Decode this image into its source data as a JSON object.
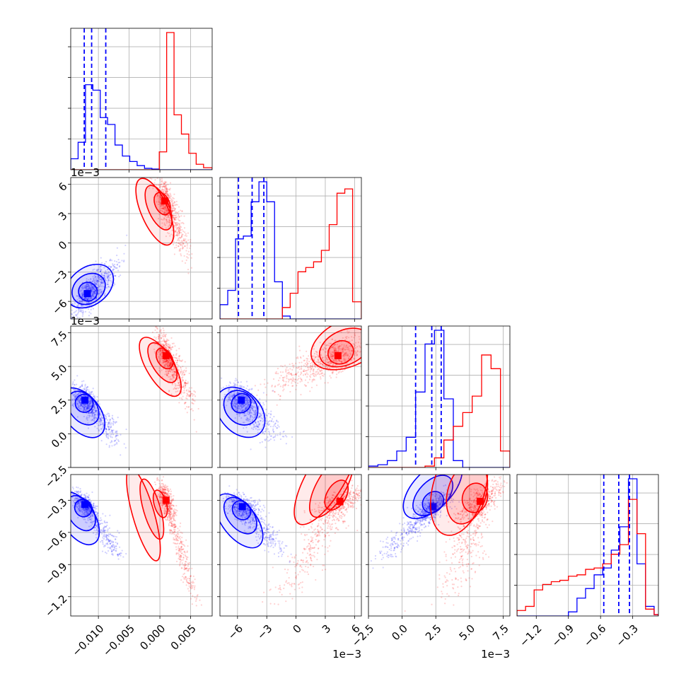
{
  "chart_data": {
    "type": "corner",
    "grid": true,
    "series": [
      {
        "color": "#0000ff"
      },
      {
        "color": "#ff0000"
      }
    ],
    "parameters": [
      {
        "range": [
          -0.0145,
          0.0085
        ],
        "offset_label": "",
        "x_ticks": [
          {
            "value": -0.01,
            "label": "−0.010"
          },
          {
            "value": -0.005,
            "label": "−0.005"
          },
          {
            "value": 0.0,
            "label": "0.000"
          },
          {
            "value": 0.005,
            "label": "0.005"
          }
        ]
      },
      {
        "range": [
          -0.0078,
          0.0067
        ],
        "offset_label": "1e−3",
        "x_ticks": [
          {
            "value": -0.006,
            "label": "−6"
          },
          {
            "value": -0.003,
            "label": "−3"
          },
          {
            "value": 0.0,
            "label": "0"
          },
          {
            "value": 0.003,
            "label": "3"
          },
          {
            "value": 0.006,
            "label": "6"
          }
        ]
      },
      {
        "range": [
          -0.0025,
          0.008
        ],
        "offset_label": "1e−3",
        "x_ticks": [
          {
            "value": -0.0025,
            "label": "−2.5"
          },
          {
            "value": 0.0,
            "label": "0.0"
          },
          {
            "value": 0.0025,
            "label": "2.5"
          },
          {
            "value": 0.005,
            "label": "5.0"
          },
          {
            "value": 0.0075,
            "label": "7.5"
          }
        ]
      },
      {
        "range": [
          -1.38,
          -0.06
        ],
        "offset_label": "",
        "x_ticks": [
          {
            "value": -1.2,
            "label": "−1.2"
          },
          {
            "value": -0.9,
            "label": "−0.9"
          },
          {
            "value": -0.6,
            "label": "−0.6"
          },
          {
            "value": -0.3,
            "label": "−0.3"
          }
        ]
      }
    ],
    "histograms": [
      {
        "param": 0,
        "bins": [
          -0.0145,
          -0.0133,
          -0.0121,
          -0.0109,
          -0.0097,
          -0.0085,
          -0.0073,
          -0.0061,
          -0.0049,
          -0.0037,
          -0.0025,
          -0.0013,
          -0.0001,
          0.0011,
          0.0023,
          0.0035,
          0.0047,
          0.0059,
          0.0071,
          0.0085
        ],
        "blue": [
          0.08,
          0.2,
          0.62,
          0.58,
          0.38,
          0.33,
          0.18,
          0.1,
          0.06,
          0.03,
          0.01,
          0.005,
          0,
          0,
          0,
          0,
          0,
          0,
          0
        ],
        "red": [
          0,
          0,
          0,
          0,
          0,
          0,
          0,
          0,
          0,
          0,
          0,
          0.0,
          0.13,
          1.0,
          0.4,
          0.26,
          0.12,
          0.04,
          0.015
        ],
        "quantiles": [
          -0.0123,
          -0.0111,
          -0.0088
        ]
      },
      {
        "param": 1,
        "bins": [
          -0.0078,
          -0.007,
          -0.0062,
          -0.0054,
          -0.0046,
          -0.0038,
          -0.003,
          -0.0022,
          -0.0014,
          -0.0006,
          0.0002,
          0.001,
          0.0018,
          0.0026,
          0.0034,
          0.0042,
          0.005,
          0.0058,
          0.0067
        ],
        "blue": [
          0.1,
          0.2,
          0.56,
          0.58,
          0.82,
          0.96,
          0.82,
          0.26,
          0.02,
          0,
          0,
          0,
          0,
          0,
          0,
          0,
          0,
          0
        ],
        "red": [
          0,
          0,
          0,
          0,
          0,
          0,
          0,
          0,
          0.08,
          0.18,
          0.33,
          0.36,
          0.4,
          0.48,
          0.66,
          0.88,
          0.91,
          0.12
        ],
        "quantiles": [
          -0.0059,
          -0.0045,
          -0.0033
        ]
      },
      {
        "param": 2,
        "bins": [
          -0.0025,
          -0.0018,
          -0.0011,
          -0.0004,
          0.0003,
          0.001,
          0.0017,
          0.0024,
          0.0031,
          0.0038,
          0.0045,
          0.0052,
          0.0059,
          0.0066,
          0.0073,
          0.008
        ],
        "blue": [
          0.01,
          0.02,
          0.05,
          0.12,
          0.22,
          0.55,
          0.9,
          1.0,
          0.5,
          0.05,
          0,
          0,
          0,
          0,
          0
        ],
        "red": [
          0,
          0,
          0,
          0,
          0,
          0,
          0.01,
          0.07,
          0.2,
          0.3,
          0.4,
          0.52,
          0.82,
          0.72,
          0.12
        ],
        "quantiles": [
          0.001,
          0.0022,
          0.0029
        ]
      },
      {
        "param": 3,
        "bins": [
          -1.38,
          -1.3,
          -1.22,
          -1.14,
          -1.06,
          -0.98,
          -0.9,
          -0.82,
          -0.74,
          -0.66,
          -0.58,
          -0.5,
          -0.42,
          -0.34,
          -0.26,
          -0.18,
          -0.1,
          -0.06
        ],
        "blue": [
          0,
          0,
          0,
          0,
          0,
          0,
          0.03,
          0.13,
          0.2,
          0.3,
          0.35,
          0.48,
          0.65,
          1.0,
          0.38,
          0.07,
          0.01
        ],
        "red": [
          0.04,
          0.07,
          0.19,
          0.23,
          0.25,
          0.26,
          0.29,
          0.3,
          0.34,
          0.35,
          0.38,
          0.45,
          0.52,
          0.85,
          0.6,
          0.05,
          0.01
        ],
        "quantiles": [
          -0.57,
          -0.43,
          -0.33
        ]
      }
    ],
    "clusters": [
      {
        "series": 0,
        "params": [
          0,
          1
        ],
        "center": [
          -0.0118,
          -0.0052
        ],
        "spread": [
          0.0012,
          0.0012
        ],
        "corr": 0.8,
        "tail": [
          0.0038,
          0.0018
        ]
      },
      {
        "series": 1,
        "params": [
          0,
          1
        ],
        "center": [
          0.0008,
          0.0043
        ],
        "spread": [
          0.0008,
          0.0012
        ],
        "corr": -0.55,
        "tail": [
          0.0036,
          -0.0052
        ]
      },
      {
        "series": 0,
        "params": [
          0,
          2
        ],
        "center": [
          -0.0122,
          0.0025
        ],
        "spread": [
          0.0011,
          0.0006
        ],
        "corr": -0.5,
        "tail": [
          0.005,
          -0.0028
        ]
      },
      {
        "series": 1,
        "params": [
          0,
          2
        ],
        "center": [
          0.001,
          0.0058
        ],
        "spread": [
          0.0008,
          0.0009
        ],
        "corr": -0.55,
        "tail": [
          0.004,
          -0.003
        ]
      },
      {
        "series": 0,
        "params": [
          1,
          2
        ],
        "center": [
          -0.0056,
          0.0025
        ],
        "spread": [
          0.0009,
          0.0006
        ],
        "corr": -0.4,
        "tail": [
          0.0032,
          -0.0025
        ]
      },
      {
        "series": 1,
        "params": [
          1,
          2
        ],
        "center": [
          0.0043,
          0.0058
        ],
        "spread": [
          0.0013,
          0.0007
        ],
        "corr": 0.4,
        "tail": [
          -0.006,
          -0.002
        ]
      },
      {
        "series": 0,
        "params": [
          0,
          3
        ],
        "center": [
          -0.0122,
          -0.34
        ],
        "spread": [
          0.001,
          0.06
        ],
        "corr": -0.6,
        "tail": [
          0.005,
          -0.45
        ]
      },
      {
        "series": 1,
        "params": [
          0,
          3
        ],
        "center": [
          0.001,
          -0.3
        ],
        "spread": [
          0.0006,
          0.08
        ],
        "corr": -0.6,
        "tail": [
          0.0045,
          -0.9
        ]
      },
      {
        "series": 0,
        "params": [
          1,
          3
        ],
        "center": [
          -0.0055,
          -0.36
        ],
        "spread": [
          0.0009,
          0.06
        ],
        "corr": -0.5,
        "tail": [
          0.0035,
          -0.4
        ]
      },
      {
        "series": 1,
        "params": [
          1,
          3
        ],
        "center": [
          0.0045,
          -0.31
        ],
        "spread": [
          0.0012,
          0.07
        ],
        "corr": 0.7,
        "tail": [
          -0.0055,
          -0.85
        ]
      },
      {
        "series": 0,
        "params": [
          2,
          3
        ],
        "center": [
          0.0023,
          -0.36
        ],
        "spread": [
          0.0007,
          0.07
        ],
        "corr": 0.7,
        "tail": [
          -0.0035,
          -0.45
        ]
      },
      {
        "series": 1,
        "params": [
          2,
          3
        ],
        "center": [
          0.0058,
          -0.31
        ],
        "spread": [
          0.0008,
          0.1
        ],
        "corr": 0.7,
        "tail": [
          -0.002,
          -0.85
        ]
      }
    ]
  }
}
